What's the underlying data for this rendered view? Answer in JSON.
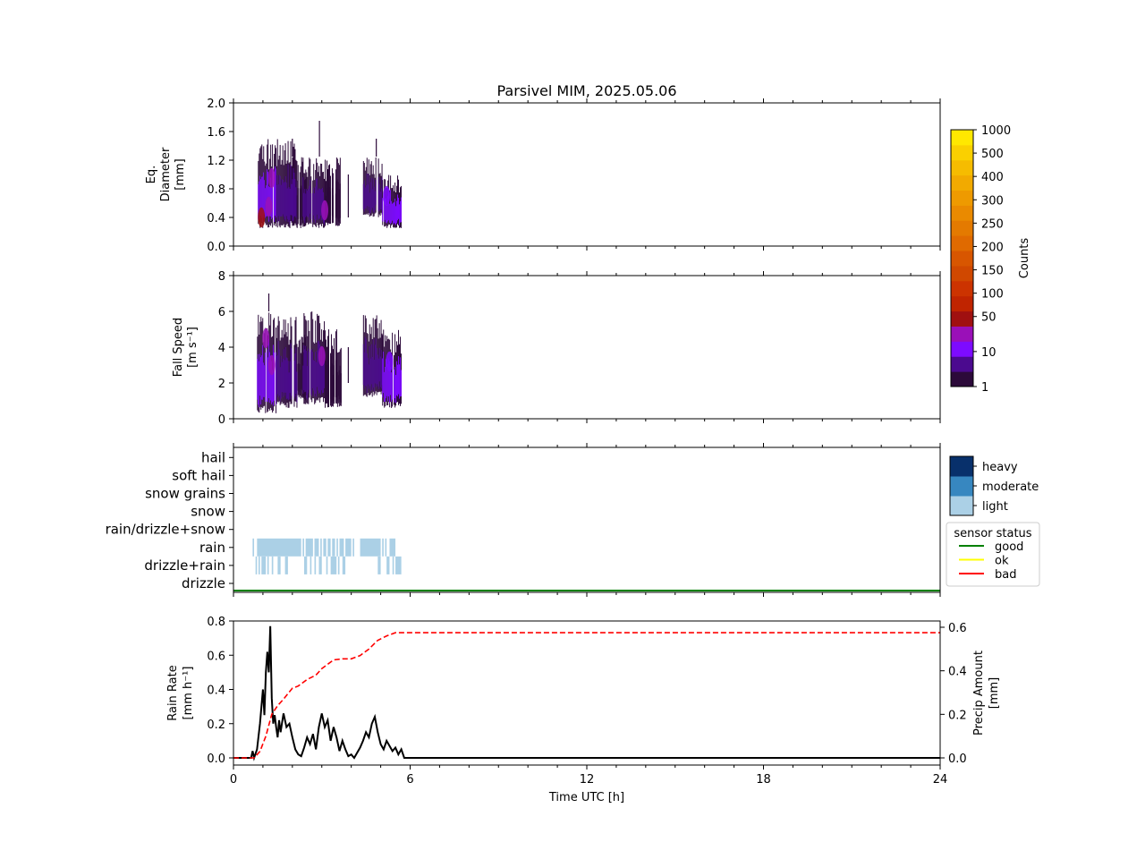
{
  "title": "Parsivel MIM, 2025.05.06",
  "chart_data": [
    {
      "id": "diameter",
      "type": "heatmap",
      "ylabel": [
        "Eq.",
        "Diameter",
        "[mm]"
      ],
      "xlim": [
        0,
        24
      ],
      "ylim": [
        0,
        2.0
      ],
      "yticks": [
        "0.0",
        "0.4",
        "0.8",
        "1.2",
        "1.6",
        "2.0"
      ],
      "ytick_values": [
        0,
        0.4,
        0.8,
        1.2,
        1.6,
        2.0
      ],
      "grid": false,
      "data_blocks": [
        {
          "x0": 0.8,
          "x1": 1.45,
          "y0": 0.25,
          "y1": 1.5,
          "level": 10
        },
        {
          "x0": 1.45,
          "x1": 2.15,
          "y0": 0.25,
          "y1": 1.5,
          "level": 5
        },
        {
          "x0": 2.15,
          "x1": 2.45,
          "y0": 0.25,
          "y1": 1.25,
          "level": 3
        },
        {
          "x0": 2.35,
          "x1": 3.1,
          "y0": 0.25,
          "y1": 1.25,
          "level": 5
        },
        {
          "x0": 3.1,
          "x1": 3.65,
          "y0": 0.25,
          "y1": 1.25,
          "level": 3
        },
        {
          "x0": 4.4,
          "x1": 5.05,
          "y0": 0.4,
          "y1": 1.25,
          "level": 5
        },
        {
          "x0": 5.05,
          "x1": 5.7,
          "y0": 0.25,
          "y1": 1.0,
          "level": 10
        }
      ],
      "hotspots": [
        {
          "x": 0.95,
          "y": 0.4,
          "level": 100
        },
        {
          "x": 1.2,
          "y": 0.55,
          "level": 20
        },
        {
          "x": 1.3,
          "y": 0.95,
          "level": 20
        },
        {
          "x": 3.1,
          "y": 0.5,
          "level": 20
        },
        {
          "x": 5.2,
          "y": 0.7,
          "level": 10
        }
      ],
      "spikes": [
        {
          "x": 2.92,
          "y0": 1.25,
          "y1": 1.75
        },
        {
          "x": 2.0,
          "y0": 1.25,
          "y1": 1.5
        },
        {
          "x": 4.85,
          "y0": 1.25,
          "y1": 1.5
        },
        {
          "x": 3.9,
          "y0": 0.4,
          "y1": 1.0
        }
      ]
    },
    {
      "id": "fallspeed",
      "type": "heatmap",
      "ylabel": [
        "Fall Speed",
        "[m s⁻¹]"
      ],
      "xlim": [
        0,
        24
      ],
      "ylim": [
        0,
        8
      ],
      "yticks": [
        "0",
        "2",
        "4",
        "6",
        "8"
      ],
      "ytick_values": [
        0,
        2,
        4,
        6,
        8
      ],
      "grid": false,
      "data_blocks": [
        {
          "x0": 0.8,
          "x1": 1.45,
          "y0": 0.3,
          "y1": 6.0,
          "level": 10
        },
        {
          "x0": 1.45,
          "x1": 2.15,
          "y0": 0.6,
          "y1": 6.0,
          "level": 5
        },
        {
          "x0": 2.15,
          "x1": 2.45,
          "y0": 1.0,
          "y1": 5.0,
          "level": 3
        },
        {
          "x0": 2.35,
          "x1": 3.1,
          "y0": 0.8,
          "y1": 6.0,
          "level": 5
        },
        {
          "x0": 3.1,
          "x1": 3.65,
          "y0": 0.6,
          "y1": 5.0,
          "level": 3
        },
        {
          "x0": 4.4,
          "x1": 5.05,
          "y0": 1.2,
          "y1": 6.0,
          "level": 5
        },
        {
          "x0": 5.05,
          "x1": 5.7,
          "y0": 0.6,
          "y1": 5.0,
          "level": 10
        }
      ],
      "hotspots": [
        {
          "x": 1.1,
          "y": 4.5,
          "level": 20
        },
        {
          "x": 1.3,
          "y": 3.0,
          "level": 20
        },
        {
          "x": 3.0,
          "y": 3.5,
          "level": 20
        },
        {
          "x": 5.3,
          "y": 3.2,
          "level": 10
        }
      ],
      "spikes": [
        {
          "x": 1.2,
          "y0": 6.0,
          "y1": 7.0
        },
        {
          "x": 3.9,
          "y0": 2.0,
          "y1": 4.0
        }
      ]
    },
    {
      "id": "precip_type",
      "type": "heatmap",
      "xlim": [
        0,
        24
      ],
      "categories": [
        "drizzle",
        "drizzle+rain",
        "rain",
        "rain/drizzle+snow",
        "snow",
        "snow grains",
        "soft hail",
        "hail"
      ],
      "segments": {
        "rain": [
          [
            0.65,
            0.7
          ],
          [
            0.8,
            2.3
          ],
          [
            2.35,
            2.4
          ],
          [
            2.45,
            2.7
          ],
          [
            2.75,
            2.9
          ],
          [
            2.95,
            3.0
          ],
          [
            3.05,
            3.15
          ],
          [
            3.2,
            3.3
          ],
          [
            3.35,
            3.45
          ],
          [
            3.5,
            3.55
          ],
          [
            3.6,
            3.75
          ],
          [
            3.8,
            4.0
          ],
          [
            4.05,
            4.1
          ],
          [
            4.3,
            5.0
          ],
          [
            5.05,
            5.1
          ],
          [
            5.15,
            5.2
          ],
          [
            5.3,
            5.5
          ]
        ],
        "drizzle+rain": [
          [
            0.75,
            0.8
          ],
          [
            0.85,
            0.9
          ],
          [
            0.95,
            1.1
          ],
          [
            1.15,
            1.2
          ],
          [
            1.3,
            1.35
          ],
          [
            1.5,
            1.6
          ],
          [
            1.75,
            1.85
          ],
          [
            2.4,
            2.5
          ],
          [
            2.6,
            2.65
          ],
          [
            2.75,
            2.8
          ],
          [
            2.9,
            3.0
          ],
          [
            3.15,
            3.2
          ],
          [
            3.3,
            3.5
          ],
          [
            3.55,
            3.6
          ],
          [
            3.7,
            3.8
          ],
          [
            4.9,
            5.0
          ],
          [
            5.2,
            5.3
          ],
          [
            5.4,
            5.45
          ],
          [
            5.5,
            5.7
          ]
        ]
      },
      "sensor_status": {
        "status": "good",
        "from": 0,
        "to": 24
      }
    },
    {
      "id": "rainrate",
      "type": "line",
      "xlabel": "Time UTC [h]",
      "ylabel": [
        "Rain Rate",
        "[mm h⁻¹]"
      ],
      "y2label": [
        "Precip Amount",
        "[mm]"
      ],
      "xlim": [
        0,
        24
      ],
      "ylim": [
        0,
        0.8
      ],
      "y2lim": [
        0,
        0.6
      ],
      "xticks": [
        "0",
        "6",
        "12",
        "18",
        "24"
      ],
      "xtick_values": [
        0,
        6,
        12,
        18,
        24
      ],
      "yticks": [
        "0.0",
        "0.2",
        "0.4",
        "0.6",
        "0.8"
      ],
      "ytick_values": [
        0,
        0.2,
        0.4,
        0.6,
        0.8
      ],
      "y2ticks": [
        "0.0",
        "0.2",
        "0.4",
        "0.6"
      ],
      "y2tick_values": [
        0,
        0.2,
        0.4,
        0.6
      ],
      "series": [
        {
          "axis": "left",
          "color": "#000000",
          "x": [
            0,
            0.6,
            0.65,
            0.7,
            0.8,
            0.9,
            0.95,
            1.0,
            1.05,
            1.1,
            1.15,
            1.2,
            1.25,
            1.3,
            1.35,
            1.4,
            1.45,
            1.5,
            1.55,
            1.6,
            1.7,
            1.8,
            1.9,
            2.0,
            2.1,
            2.2,
            2.3,
            2.4,
            2.5,
            2.6,
            2.7,
            2.8,
            2.9,
            3.0,
            3.1,
            3.2,
            3.3,
            3.4,
            3.5,
            3.6,
            3.7,
            3.8,
            3.9,
            4.0,
            4.1,
            4.2,
            4.3,
            4.4,
            4.5,
            4.6,
            4.7,
            4.8,
            4.9,
            5.0,
            5.1,
            5.2,
            5.3,
            5.4,
            5.5,
            5.6,
            5.7,
            5.8,
            24
          ],
          "y": [
            0,
            0,
            0.04,
            0,
            0.05,
            0.2,
            0.3,
            0.4,
            0.25,
            0.5,
            0.62,
            0.5,
            0.77,
            0.35,
            0.2,
            0.25,
            0.18,
            0.12,
            0.22,
            0.15,
            0.26,
            0.18,
            0.2,
            0.12,
            0.05,
            0.02,
            0.01,
            0.06,
            0.12,
            0.08,
            0.14,
            0.05,
            0.18,
            0.26,
            0.18,
            0.22,
            0.1,
            0.18,
            0.12,
            0.04,
            0.1,
            0.05,
            0.01,
            0.02,
            0.0,
            0.03,
            0.06,
            0.1,
            0.15,
            0.12,
            0.2,
            0.24,
            0.15,
            0.08,
            0.05,
            0.1,
            0.07,
            0.04,
            0.06,
            0.02,
            0.05,
            0,
            0
          ]
        },
        {
          "axis": "right",
          "color": "#ff0000",
          "dash": "dashed",
          "x": [
            0,
            0.7,
            0.9,
            1.1,
            1.3,
            1.5,
            1.7,
            2.0,
            2.2,
            2.5,
            2.8,
            3.0,
            3.2,
            3.4,
            3.7,
            4.0,
            4.3,
            4.6,
            4.9,
            5.2,
            5.5,
            24
          ],
          "y": [
            0,
            0,
            0.03,
            0.1,
            0.2,
            0.24,
            0.27,
            0.32,
            0.33,
            0.36,
            0.38,
            0.41,
            0.43,
            0.45,
            0.455,
            0.455,
            0.47,
            0.5,
            0.54,
            0.56,
            0.575,
            0.575
          ]
        }
      ]
    }
  ],
  "colorbar_counts": {
    "label": "Counts",
    "ticks": [
      "1",
      "10",
      "50",
      "100",
      "150",
      "200",
      "250",
      "300",
      "400",
      "500",
      "1000"
    ],
    "colors": [
      "#2c0a3a",
      "#4b0a8f",
      "#7d0bff",
      "#9a10b8",
      "#a01010",
      "#c02400",
      "#cc3300",
      "#d04800",
      "#d85600",
      "#e06a00",
      "#e47a00",
      "#ea8a00",
      "#ee9a00",
      "#f2aa00",
      "#f6bc00",
      "#fad000",
      "#ffe800"
    ]
  },
  "colorbar_intensity": {
    "labels": [
      "light",
      "moderate",
      "heavy"
    ],
    "colors": [
      "#abd0e6",
      "#3787c0",
      "#08306b"
    ]
  },
  "legend": {
    "title": "sensor status",
    "placement": "right",
    "entries": [
      {
        "label": "good",
        "color": "#008000"
      },
      {
        "label": "ok",
        "color": "#ffff00"
      },
      {
        "label": "bad",
        "color": "#ff0000"
      }
    ]
  }
}
